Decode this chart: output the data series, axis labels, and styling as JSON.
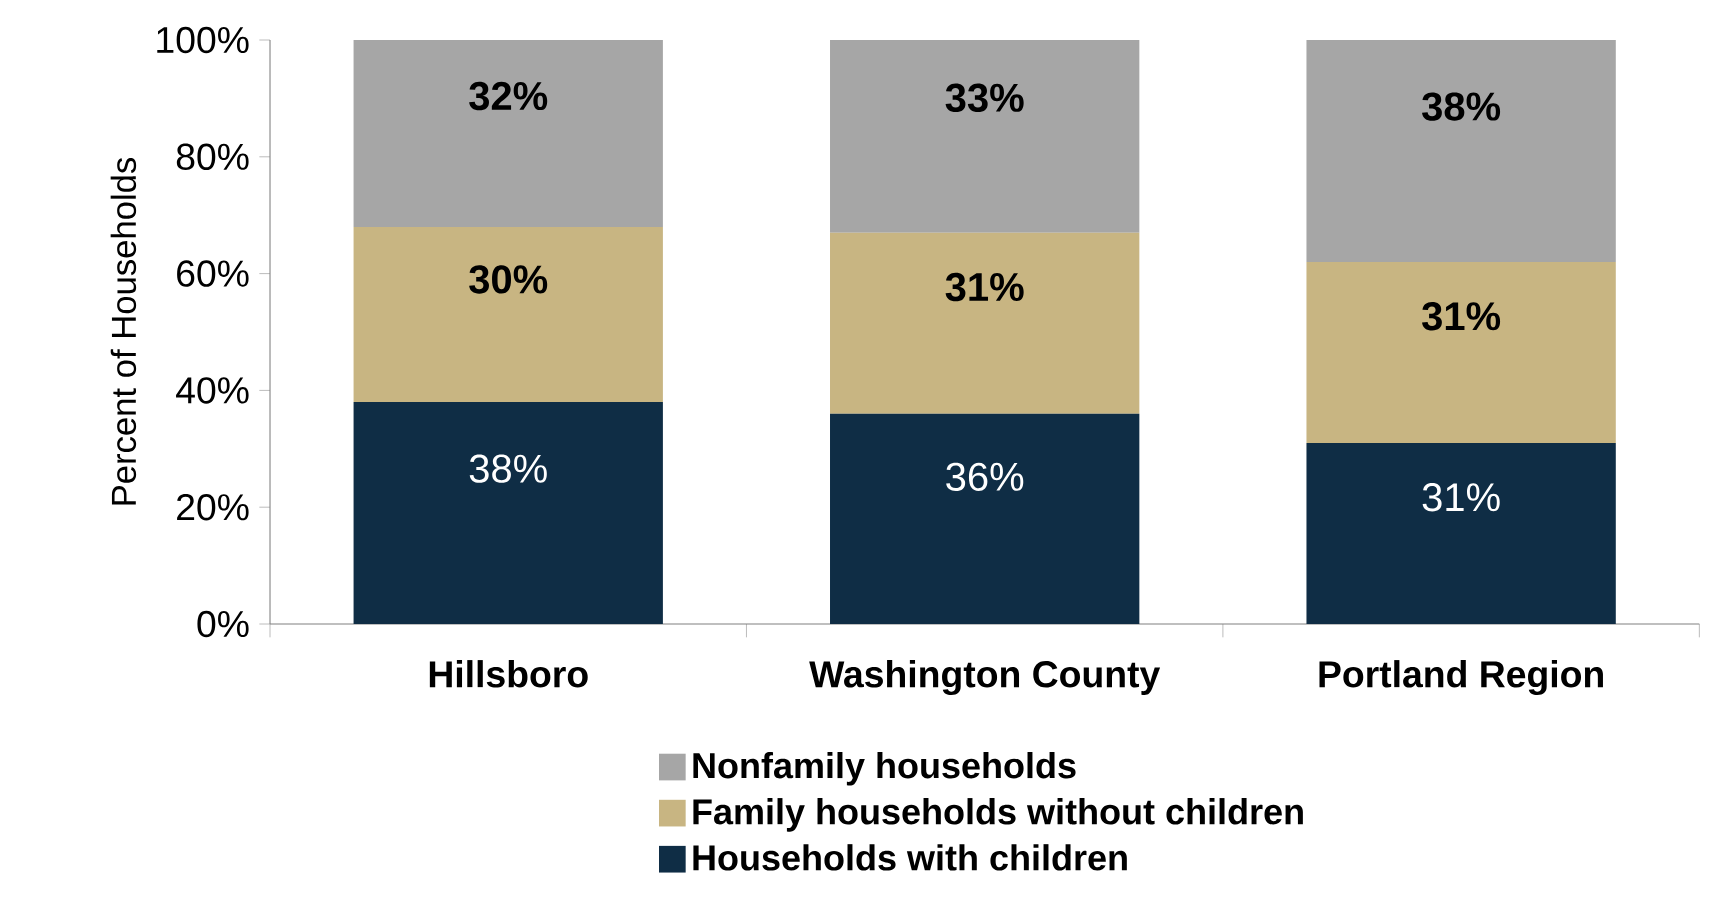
{
  "chart_data": {
    "type": "bar",
    "stacked": true,
    "ylabel": "Percent of Households",
    "categories": [
      "Hillsboro",
      "Washington County",
      "Portland Region"
    ],
    "series": [
      {
        "name": "Households with children",
        "color": "#0f2d45",
        "values": [
          38,
          36,
          31
        ],
        "value_labels": [
          "38%",
          "36%",
          "31%"
        ]
      },
      {
        "name": "Family households without children",
        "color": "#c8b582",
        "values": [
          30,
          31,
          31
        ],
        "value_labels": [
          "30%",
          "31%",
          "31%"
        ]
      },
      {
        "name": "Nonfamily households",
        "color": "#a6a6a6",
        "values": [
          32,
          33,
          38
        ],
        "value_labels": [
          "32%",
          "33%",
          "38%"
        ]
      }
    ],
    "ylim": [
      0,
      100
    ],
    "yticks": [
      {
        "value": 0,
        "label": "0%"
      },
      {
        "value": 20,
        "label": "20%"
      },
      {
        "value": 40,
        "label": "40%"
      },
      {
        "value": 60,
        "label": "60%"
      },
      {
        "value": 80,
        "label": "80%"
      },
      {
        "value": 100,
        "label": "100%"
      }
    ],
    "legend": "bottom"
  }
}
